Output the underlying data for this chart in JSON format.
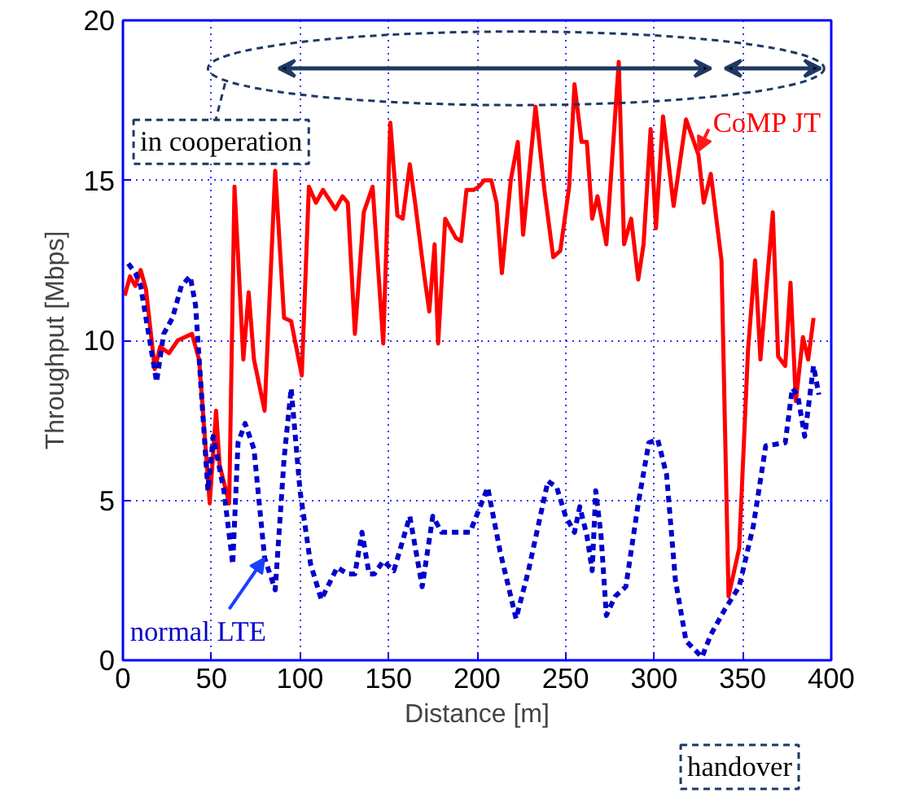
{
  "chart_data": {
    "type": "line",
    "xlabel": "Distance [m]",
    "ylabel": "Throughput [Mbps]",
    "xlim": [
      0,
      400
    ],
    "ylim": [
      0,
      20
    ],
    "xticks": [
      0,
      50,
      100,
      150,
      200,
      250,
      300,
      350,
      400
    ],
    "yticks": [
      0,
      5,
      10,
      15,
      20
    ],
    "grid": true,
    "annotations": [
      "in cooperation",
      "handover"
    ],
    "series": [
      {
        "name": "CoMP JT",
        "color": "#ff0000",
        "line_style": "solid",
        "x": [
          1,
          4,
          7,
          10,
          13,
          18,
          21,
          26,
          31,
          39,
          43,
          49,
          52.6,
          54.6,
          60,
          63,
          68,
          71,
          74,
          80,
          86,
          91,
          95,
          101,
          105,
          109,
          113,
          120,
          124,
          127,
          131,
          136,
          141,
          147,
          151,
          155,
          158,
          162,
          165,
          170,
          173,
          176,
          178,
          182,
          188,
          191,
          194,
          198,
          201,
          204,
          208,
          211,
          214,
          219,
          223,
          226,
          233,
          238,
          243,
          247,
          252,
          255,
          259,
          262,
          265,
          268,
          273,
          280,
          283,
          287,
          291,
          294,
          298,
          301,
          305,
          311,
          318,
          325,
          328,
          332,
          338,
          342,
          348,
          353,
          357,
          360,
          367,
          370,
          374,
          377,
          380,
          384,
          387,
          390
        ],
        "values": [
          11.4,
          12.0,
          11.7,
          12.2,
          11.6,
          9.1,
          9.8,
          9.6,
          10.0,
          10.2,
          9.4,
          4.9,
          7.8,
          6.1,
          4.9,
          14.8,
          9.4,
          11.5,
          9.4,
          7.8,
          15.3,
          10.7,
          10.6,
          8.9,
          14.8,
          14.3,
          14.7,
          14.1,
          14.5,
          14.3,
          10.2,
          14.0,
          14.8,
          9.9,
          16.8,
          13.9,
          13.8,
          15.5,
          14.3,
          12.1,
          10.9,
          13.0,
          9.9,
          13.8,
          13.2,
          13.1,
          14.7,
          14.7,
          14.8,
          15.0,
          15.0,
          14.3,
          12.1,
          15.0,
          16.2,
          13.3,
          17.3,
          14.7,
          12.6,
          12.8,
          14.8,
          18.0,
          16.2,
          16.2,
          13.8,
          14.5,
          13.0,
          18.7,
          13.0,
          13.8,
          11.9,
          13.0,
          16.6,
          13.5,
          17.0,
          14.2,
          16.9,
          15.8,
          14.3,
          15.2,
          12.5,
          2.0,
          3.5,
          9.7,
          12.5,
          9.4,
          14.0,
          9.5,
          9.2,
          11.8,
          8.1,
          10.1,
          9.4,
          10.7
        ]
      },
      {
        "name": "normal LTE",
        "color": "#0000cc",
        "line_style": "dashed",
        "x": [
          3,
          7,
          10,
          19,
          23,
          28,
          33,
          38,
          41,
          48,
          51,
          57,
          62,
          65,
          69,
          74,
          80,
          86,
          91,
          95,
          100,
          106,
          112,
          121,
          127,
          131,
          135,
          139,
          142,
          147,
          153,
          162,
          169,
          175,
          180,
          196,
          201,
          206,
          213,
          222,
          229,
          240,
          245,
          250,
          255,
          258,
          262,
          265,
          267,
          270,
          273,
          278,
          284,
          291,
          297,
          302,
          307,
          312,
          318,
          327,
          332,
          340,
          348,
          356,
          363,
          374,
          378,
          381,
          385,
          390,
          393
        ],
        "values": [
          12.4,
          12.1,
          11.7,
          8.7,
          10.2,
          10.7,
          11.7,
          12.0,
          11.1,
          5.3,
          7.0,
          5.3,
          3.0,
          6.8,
          7.4,
          6.6,
          3.2,
          2.2,
          6.3,
          8.5,
          5.3,
          3.0,
          1.9,
          2.9,
          2.7,
          2.7,
          4.0,
          2.7,
          2.7,
          3.1,
          2.8,
          4.5,
          2.3,
          4.5,
          4.0,
          4.0,
          4.7,
          5.4,
          3.4,
          1.3,
          2.8,
          5.6,
          5.4,
          4.5,
          4.0,
          4.8,
          3.9,
          2.8,
          5.3,
          3.9,
          1.4,
          2.0,
          2.3,
          4.9,
          6.8,
          6.9,
          5.8,
          2.5,
          0.6,
          0.1,
          0.8,
          1.6,
          2.3,
          4.2,
          6.7,
          6.8,
          8.5,
          8.3,
          7.0,
          9.2,
          8.3
        ]
      }
    ]
  }
}
